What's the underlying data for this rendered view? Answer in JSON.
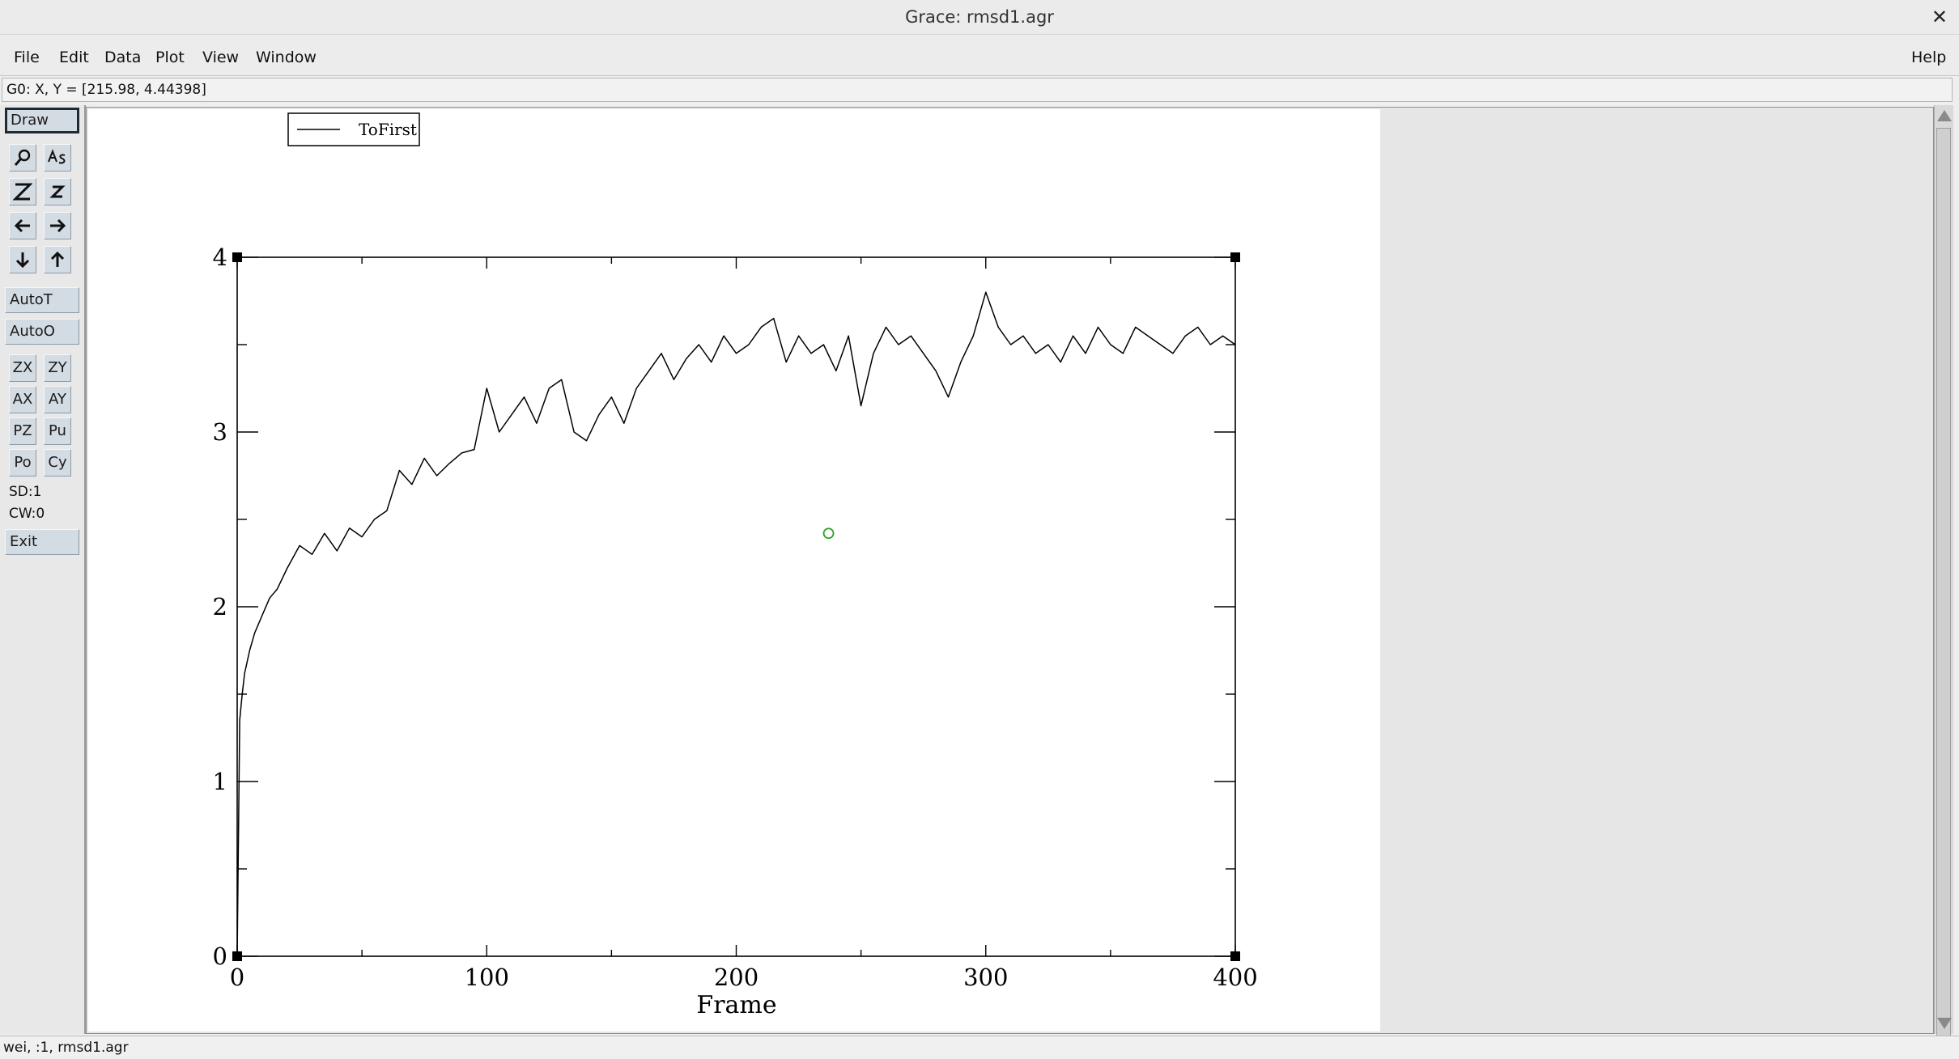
{
  "window": {
    "title": "Grace: rmsd1.agr",
    "close_glyph": "✕"
  },
  "menu": {
    "items": [
      "File",
      "Edit",
      "Data",
      "Plot",
      "View",
      "Window"
    ],
    "help": "Help"
  },
  "readout": "G0: X, Y = [215.98, 4.44398]",
  "toolbar": {
    "draw": "Draw",
    "icon_buttons": [
      {
        "name": "zoom-icon"
      },
      {
        "name": "text-string-icon"
      },
      {
        "name": "zoom-x-icon"
      },
      {
        "name": "zoom-y-icon"
      },
      {
        "name": "scroll-left-icon"
      },
      {
        "name": "scroll-right-icon"
      },
      {
        "name": "scroll-down-icon"
      },
      {
        "name": "scroll-up-icon"
      }
    ],
    "autot": "AutoT",
    "autoo": "AutoO",
    "small": [
      "ZX",
      "ZY",
      "AX",
      "AY",
      "PZ",
      "Pu",
      "Po",
      "Cy"
    ],
    "sd": "SD:1",
    "cw": "CW:0",
    "exit": "Exit"
  },
  "status": "wei, :1, rmsd1.agr",
  "chart_data": {
    "type": "line",
    "title": "",
    "xlabel": "Frame",
    "ylabel": "",
    "xlim": [
      0,
      400
    ],
    "ylim": [
      0,
      4
    ],
    "x_ticks": [
      "0",
      "100",
      "200",
      "300",
      "400"
    ],
    "y_ticks": [
      "0",
      "1",
      "2",
      "3",
      "4"
    ],
    "legend": {
      "position": "top-left",
      "entries": [
        "ToFirst"
      ]
    },
    "grid": false,
    "marker_point": {
      "x": 237,
      "y": 2.42,
      "color": "#2aa02a"
    },
    "series": [
      {
        "name": "ToFirst",
        "color": "#000000",
        "x": [
          0,
          1,
          2,
          3,
          5,
          7,
          10,
          13,
          16,
          20,
          25,
          30,
          35,
          40,
          45,
          50,
          55,
          60,
          65,
          70,
          75,
          80,
          85,
          90,
          95,
          100,
          105,
          110,
          115,
          120,
          125,
          130,
          135,
          140,
          145,
          150,
          155,
          160,
          165,
          170,
          175,
          180,
          185,
          190,
          195,
          200,
          205,
          210,
          215,
          220,
          225,
          230,
          235,
          240,
          245,
          250,
          255,
          260,
          265,
          270,
          275,
          280,
          285,
          290,
          295,
          300,
          305,
          310,
          315,
          320,
          325,
          330,
          335,
          340,
          345,
          350,
          355,
          360,
          365,
          370,
          375,
          380,
          385,
          390,
          395,
          400
        ],
        "y": [
          0.0,
          1.35,
          1.5,
          1.62,
          1.75,
          1.85,
          1.95,
          2.05,
          2.1,
          2.22,
          2.35,
          2.3,
          2.42,
          2.32,
          2.45,
          2.4,
          2.5,
          2.55,
          2.78,
          2.7,
          2.85,
          2.75,
          2.82,
          2.88,
          2.9,
          3.25,
          3.0,
          3.1,
          3.2,
          3.05,
          3.25,
          3.3,
          3.0,
          2.95,
          3.1,
          3.2,
          3.05,
          3.25,
          3.35,
          3.45,
          3.3,
          3.42,
          3.5,
          3.4,
          3.55,
          3.45,
          3.5,
          3.6,
          3.65,
          3.4,
          3.55,
          3.45,
          3.5,
          3.35,
          3.55,
          3.15,
          3.45,
          3.6,
          3.5,
          3.55,
          3.45,
          3.35,
          3.2,
          3.4,
          3.55,
          3.8,
          3.6,
          3.5,
          3.55,
          3.45,
          3.5,
          3.4,
          3.55,
          3.45,
          3.6,
          3.5,
          3.45,
          3.6,
          3.55,
          3.5,
          3.45,
          3.55,
          3.6,
          3.5,
          3.55,
          3.5
        ]
      }
    ]
  }
}
